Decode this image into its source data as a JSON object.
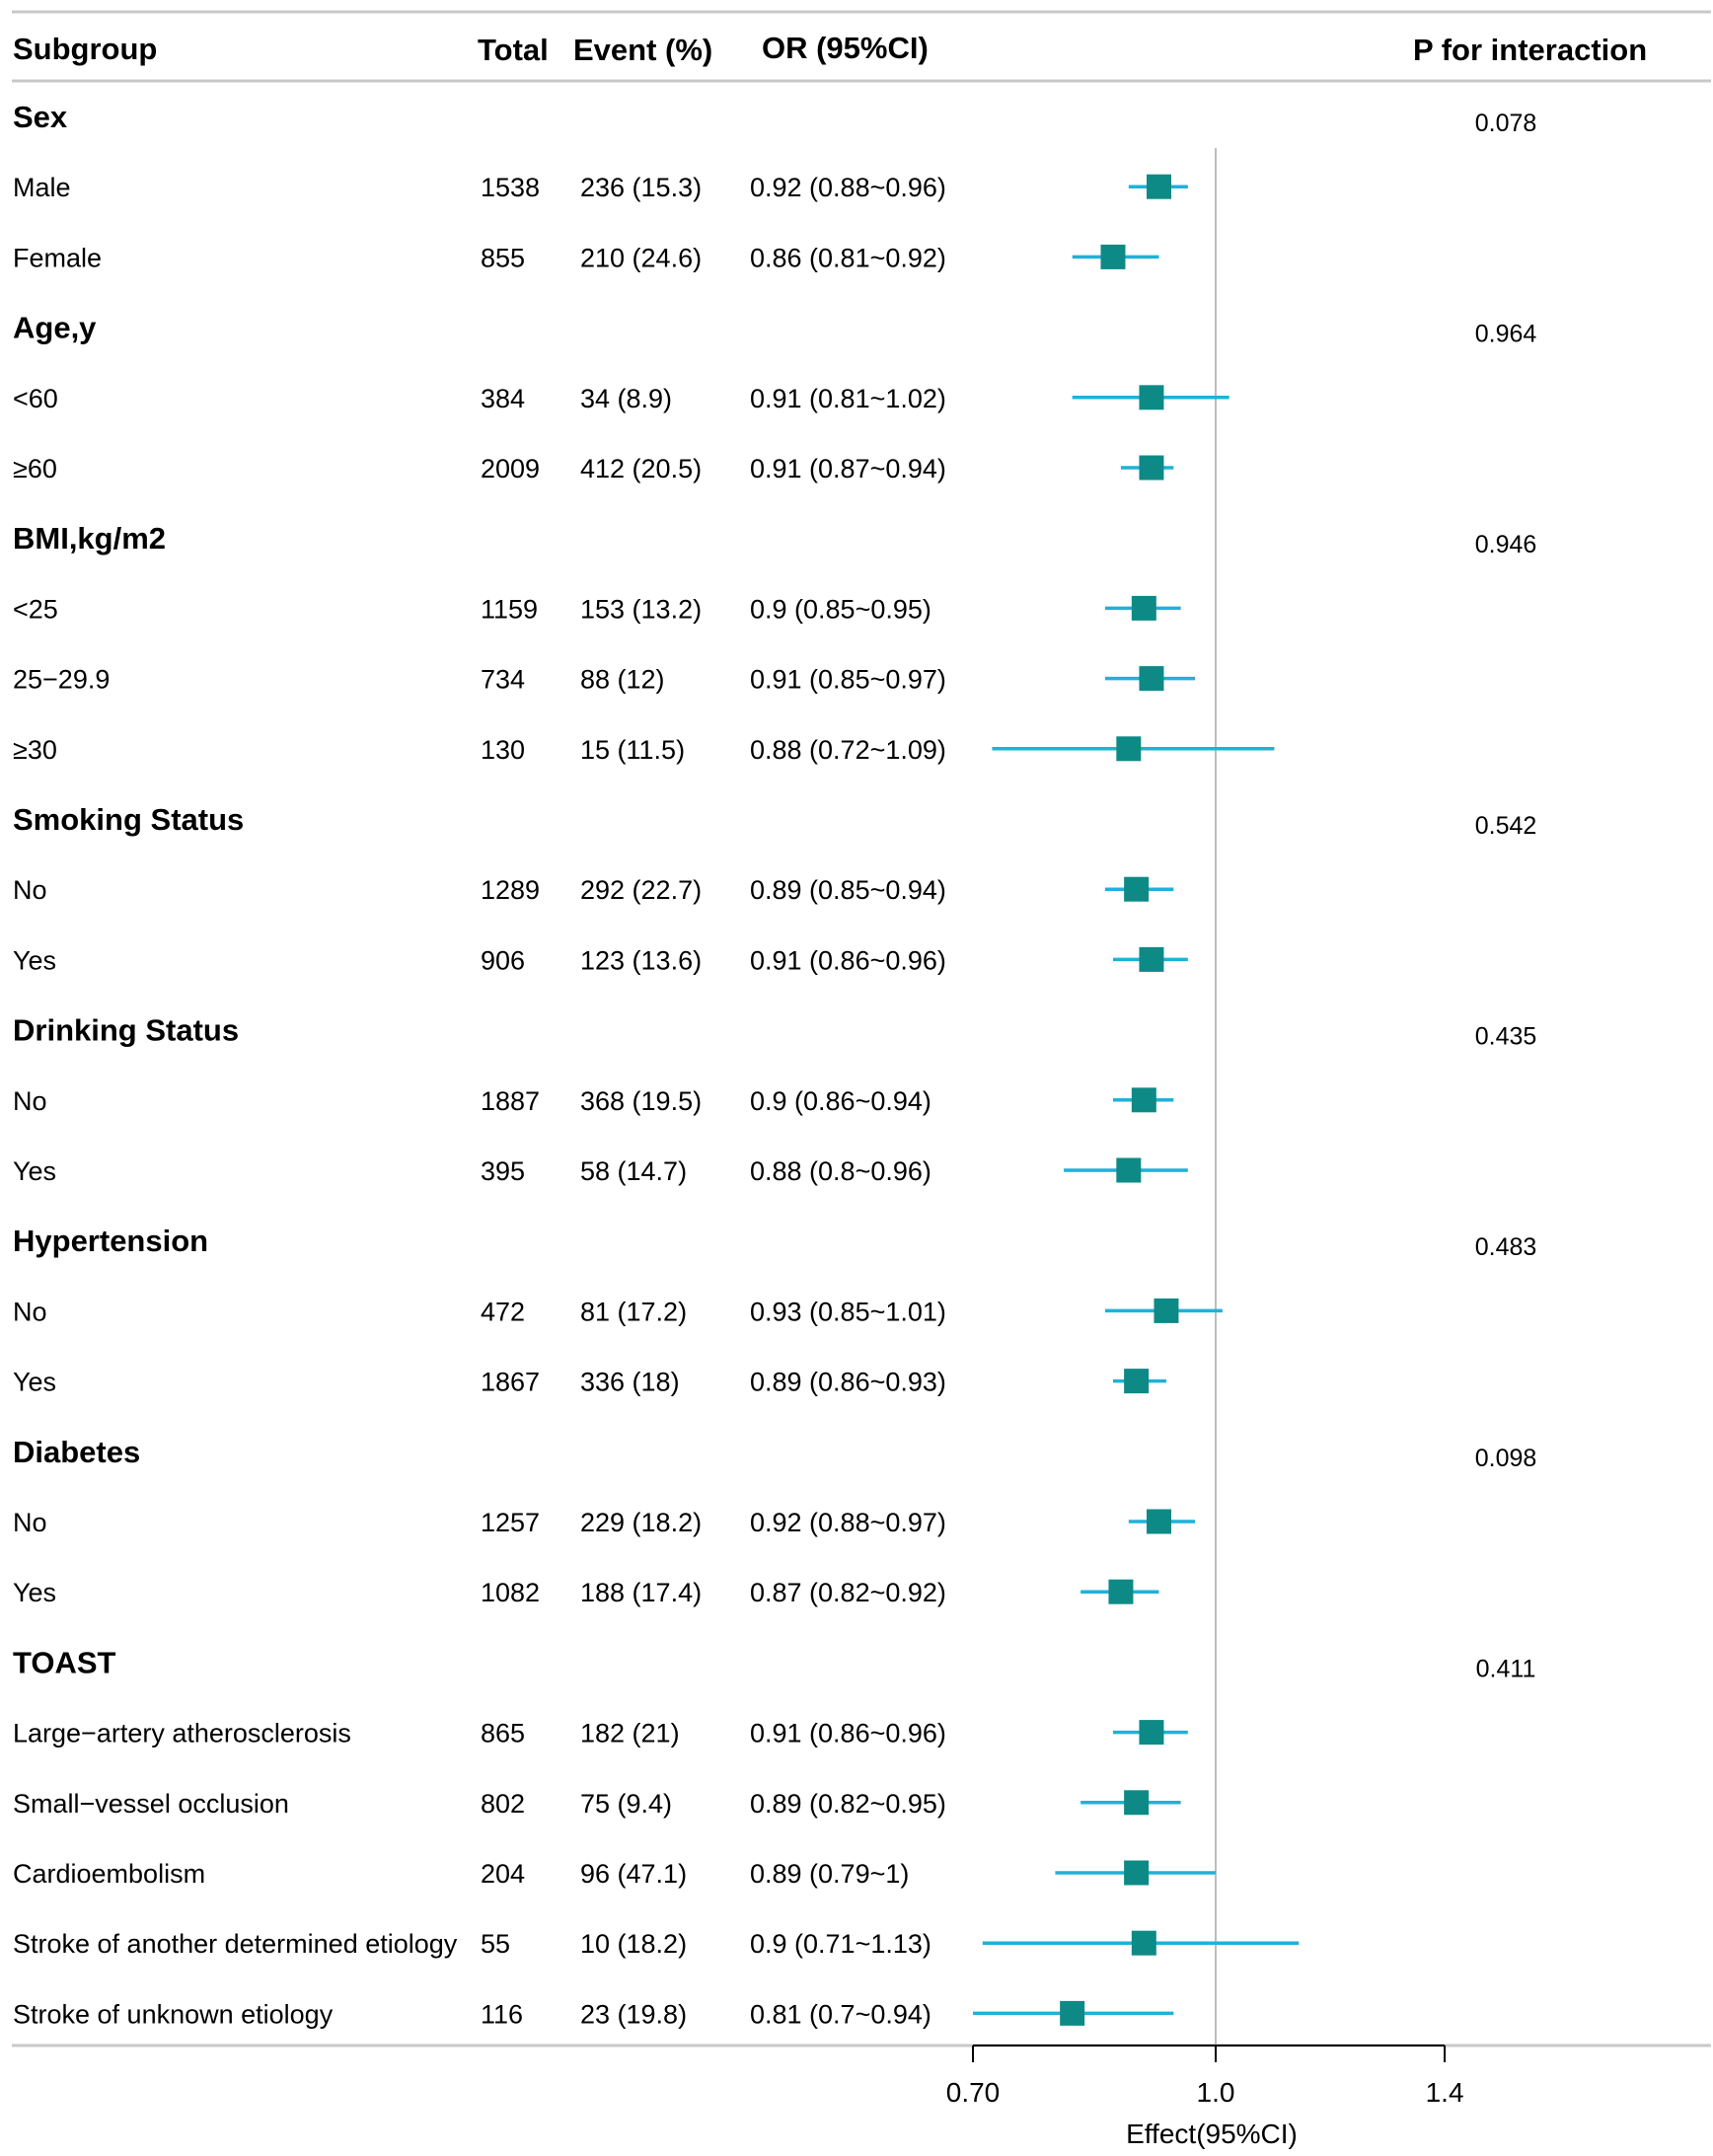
{
  "chart_data": {
    "type": "forest",
    "columns": {
      "subgroup": "Subgroup",
      "total": "Total",
      "event": "Event (%)",
      "or": "OR (95%CI)",
      "p": "P for interaction"
    },
    "xlabel": "Effect(95%CI)",
    "xlim": [
      0.7,
      1.4
    ],
    "xticks": [
      {
        "value": 0.7,
        "label": "0.70"
      },
      {
        "value": 1.0,
        "label": "1.0"
      },
      {
        "value": 1.4,
        "label": "1.4"
      }
    ],
    "reference_line": 1.0,
    "colors": {
      "point": "#0e8a86",
      "ci": "#1eb2d9",
      "reference": "#bdbdbd",
      "rule": "#c8c8c8"
    },
    "groups": [
      {
        "label": "Sex",
        "p": "0.078",
        "rows": [
          {
            "label": "Male",
            "total": "1538",
            "event": "236 (15.3)",
            "or_text": "0.92 (0.88~0.96)",
            "or": 0.92,
            "lo": 0.88,
            "hi": 0.96
          },
          {
            "label": "Female",
            "total": "855",
            "event": "210 (24.6)",
            "or_text": "0.86 (0.81~0.92)",
            "or": 0.86,
            "lo": 0.81,
            "hi": 0.92
          }
        ]
      },
      {
        "label": "Age,y",
        "p": "0.964",
        "rows": [
          {
            "label": "<60",
            "total": "384",
            "event": "34 (8.9)",
            "or_text": "0.91 (0.81~1.02)",
            "or": 0.91,
            "lo": 0.81,
            "hi": 1.02
          },
          {
            "label": "≥60",
            "total": "2009",
            "event": "412 (20.5)",
            "or_text": "0.91 (0.87~0.94)",
            "or": 0.91,
            "lo": 0.87,
            "hi": 0.94
          }
        ]
      },
      {
        "label": "BMI,kg/m2",
        "p": "0.946",
        "rows": [
          {
            "label": "<25",
            "total": "1159",
            "event": "153 (13.2)",
            "or_text": "0.9 (0.85~0.95)",
            "or": 0.9,
            "lo": 0.85,
            "hi": 0.95
          },
          {
            "label": "25−29.9",
            "total": "734",
            "event": "88 (12)",
            "or_text": "0.91 (0.85~0.97)",
            "or": 0.91,
            "lo": 0.85,
            "hi": 0.97
          },
          {
            "label": "≥30",
            "total": "130",
            "event": "15 (11.5)",
            "or_text": "0.88 (0.72~1.09)",
            "or": 0.88,
            "lo": 0.72,
            "hi": 1.09
          }
        ]
      },
      {
        "label": "Smoking Status",
        "p": "0.542",
        "rows": [
          {
            "label": "No",
            "total": "1289",
            "event": "292 (22.7)",
            "or_text": "0.89 (0.85~0.94)",
            "or": 0.89,
            "lo": 0.85,
            "hi": 0.94
          },
          {
            "label": "Yes",
            "total": "906",
            "event": "123 (13.6)",
            "or_text": "0.91 (0.86~0.96)",
            "or": 0.91,
            "lo": 0.86,
            "hi": 0.96
          }
        ]
      },
      {
        "label": "Drinking Status",
        "p": "0.435",
        "rows": [
          {
            "label": "No",
            "total": "1887",
            "event": "368 (19.5)",
            "or_text": "0.9 (0.86~0.94)",
            "or": 0.9,
            "lo": 0.86,
            "hi": 0.94
          },
          {
            "label": "Yes",
            "total": "395",
            "event": "58 (14.7)",
            "or_text": "0.88 (0.8~0.96)",
            "or": 0.88,
            "lo": 0.8,
            "hi": 0.96
          }
        ]
      },
      {
        "label": "Hypertension",
        "p": "0.483",
        "rows": [
          {
            "label": "No",
            "total": "472",
            "event": "81 (17.2)",
            "or_text": "0.93 (0.85~1.01)",
            "or": 0.93,
            "lo": 0.85,
            "hi": 1.01
          },
          {
            "label": "Yes",
            "total": "1867",
            "event": "336 (18)",
            "or_text": "0.89 (0.86~0.93)",
            "or": 0.89,
            "lo": 0.86,
            "hi": 0.93
          }
        ]
      },
      {
        "label": "Diabetes",
        "p": "0.098",
        "rows": [
          {
            "label": "No",
            "total": "1257",
            "event": "229 (18.2)",
            "or_text": "0.92 (0.88~0.97)",
            "or": 0.92,
            "lo": 0.88,
            "hi": 0.97
          },
          {
            "label": "Yes",
            "total": "1082",
            "event": "188 (17.4)",
            "or_text": "0.87 (0.82~0.92)",
            "or": 0.87,
            "lo": 0.82,
            "hi": 0.92
          }
        ]
      },
      {
        "label": "TOAST",
        "p": "0.411",
        "rows": [
          {
            "label": "Large−artery atherosclerosis",
            "total": "865",
            "event": "182 (21)",
            "or_text": "0.91 (0.86~0.96)",
            "or": 0.91,
            "lo": 0.86,
            "hi": 0.96
          },
          {
            "label": "Small−vessel occlusion",
            "total": "802",
            "event": "75 (9.4)",
            "or_text": "0.89 (0.82~0.95)",
            "or": 0.89,
            "lo": 0.82,
            "hi": 0.95
          },
          {
            "label": "Cardioembolism",
            "total": "204",
            "event": "96 (47.1)",
            "or_text": "0.89 (0.79~1)",
            "or": 0.89,
            "lo": 0.79,
            "hi": 1.0
          },
          {
            "label": "Stroke of another determined etiology",
            "total": "55",
            "event": "10 (18.2)",
            "or_text": "0.9 (0.71~1.13)",
            "or": 0.9,
            "lo": 0.71,
            "hi": 1.13
          },
          {
            "label": "Stroke of unknown etiology",
            "total": "116",
            "event": "23 (19.8)",
            "or_text": "0.81 (0.7~0.94)",
            "or": 0.81,
            "lo": 0.7,
            "hi": 0.94
          }
        ]
      }
    ]
  }
}
